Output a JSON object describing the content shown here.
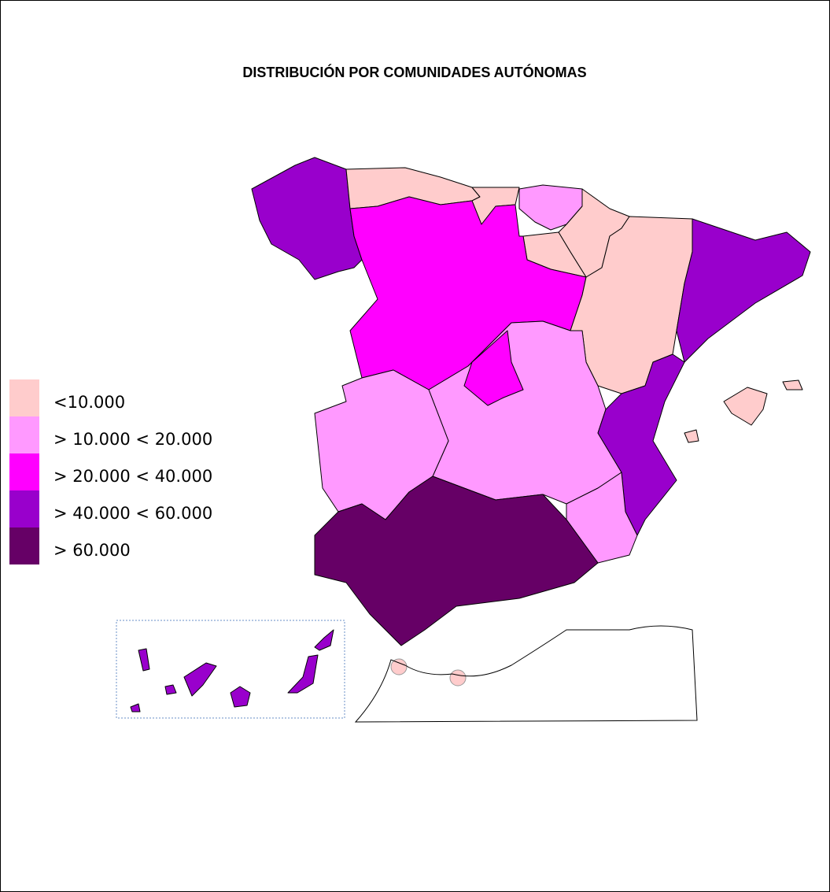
{
  "title": "DISTRIBUCIÓN POR COMUNIDADES AUTÓNOMAS",
  "legend": [
    {
      "label": "<10.000",
      "color": "#ffcccc"
    },
    {
      "label": "> 10.000 < 20.000",
      "color": "#ff99ff"
    },
    {
      "label": "> 20.000 < 40.000",
      "color": "#ff00ff"
    },
    {
      "label": "> 40.000 < 60.000",
      "color": "#9900cc"
    },
    {
      "label": "> 60.000",
      "color": "#660066"
    }
  ]
}
